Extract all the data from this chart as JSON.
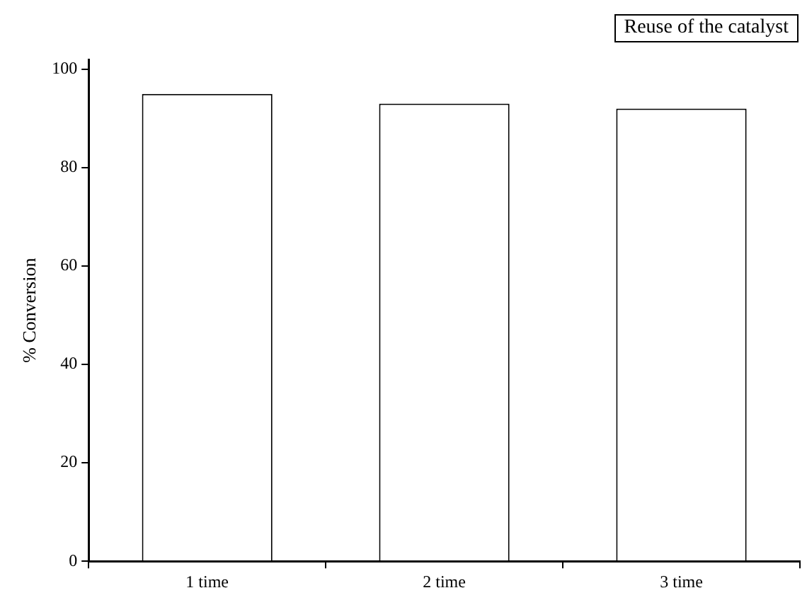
{
  "chart_data": {
    "type": "bar",
    "title": "Reuse of the catalyst",
    "ylabel": "% Conversion",
    "categories": [
      "1 time",
      "2 time",
      "3 time"
    ],
    "values": [
      95,
      93,
      92
    ],
    "color": "#ffffff",
    "ylim": [
      0,
      102
    ],
    "yticks": [
      0,
      20,
      40,
      60,
      80,
      100
    ],
    "grid": false,
    "legend": false
  }
}
